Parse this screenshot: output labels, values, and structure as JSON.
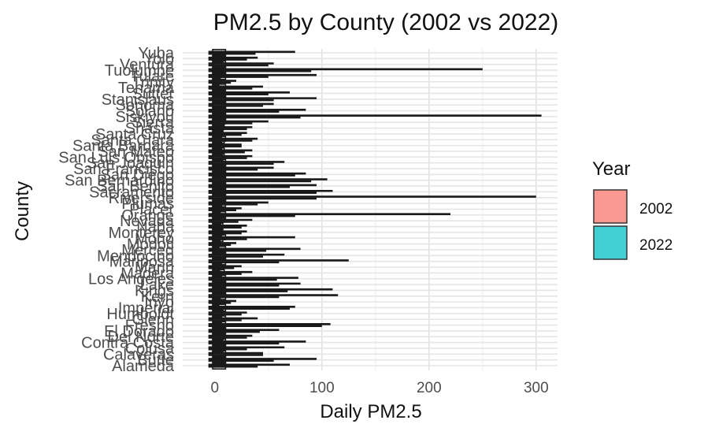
{
  "chart_data": {
    "type": "boxplot",
    "orientation": "horizontal",
    "title": "PM2.5 by County (2002 vs 2022)",
    "xlabel": "Daily PM2.5",
    "ylabel": "County",
    "xlim": [
      -30,
      320
    ],
    "xticks": [
      0,
      100,
      200,
      300
    ],
    "grid": true,
    "legend": {
      "title": "Year",
      "position": "right",
      "entries": [
        {
          "label": "2002",
          "color": "#F8766D"
        },
        {
          "label": "2022",
          "color": "#00BFC4"
        }
      ]
    },
    "categories": [
      "Alameda",
      "Butte",
      "Calaveras",
      "Colusa",
      "Contra Costa",
      "Del Norte",
      "El Dorado",
      "Fresno",
      "Glenn",
      "Humboldt",
      "Imperial",
      "Inyo",
      "Kern",
      "Kings",
      "Lake",
      "Los Angeles",
      "Madera",
      "Marin",
      "Mariposa",
      "Mendocino",
      "Merced",
      "Modoc",
      "Mono",
      "Monterey",
      "Napa",
      "Nevada",
      "Orange",
      "Placer",
      "Plumas",
      "Riverside",
      "Sacramento",
      "San Benito",
      "San Bernardino",
      "San Diego",
      "San Francisco",
      "San Joaquin",
      "San Luis Obispo",
      "San Mateo",
      "Santa Barbara",
      "Santa Clara",
      "Santa Cruz",
      "Shasta",
      "Sierra",
      "Siskiyou",
      "Solano",
      "Sonoma",
      "Stanislaus",
      "Sutter",
      "Tehama",
      "Trinity",
      "Tulare",
      "Tuolumne",
      "Ventura",
      "Yolo",
      "Yuba"
    ],
    "series": [
      {
        "name": "2002",
        "whisker_max": [
          70,
          95,
          45,
          65,
          85,
          35,
          60,
          108,
          40,
          30,
          75,
          20,
          115,
          110,
          80,
          78,
          35,
          25,
          125,
          65,
          80,
          20,
          75,
          30,
          30,
          35,
          220,
          25,
          50,
          300,
          110,
          95,
          105,
          85,
          55,
          65,
          35,
          35,
          25,
          40,
          30,
          35,
          50,
          305,
          85,
          55,
          95,
          70,
          45,
          20,
          95,
          250,
          55,
          40,
          75
        ]
      },
      {
        "name": "2022",
        "whisker_max": [
          40,
          55,
          45,
          30,
          60,
          30,
          42,
          100,
          25,
          25,
          70,
          15,
          60,
          68,
          60,
          58,
          25,
          18,
          60,
          45,
          48,
          15,
          30,
          25,
          25,
          22,
          75,
          20,
          40,
          95,
          95,
          70,
          90,
          75,
          40,
          55,
          30,
          28,
          25,
          35,
          25,
          30,
          35,
          80,
          60,
          45,
          55,
          50,
          35,
          15,
          50,
          90,
          50,
          30,
          38
        ]
      }
    ]
  }
}
